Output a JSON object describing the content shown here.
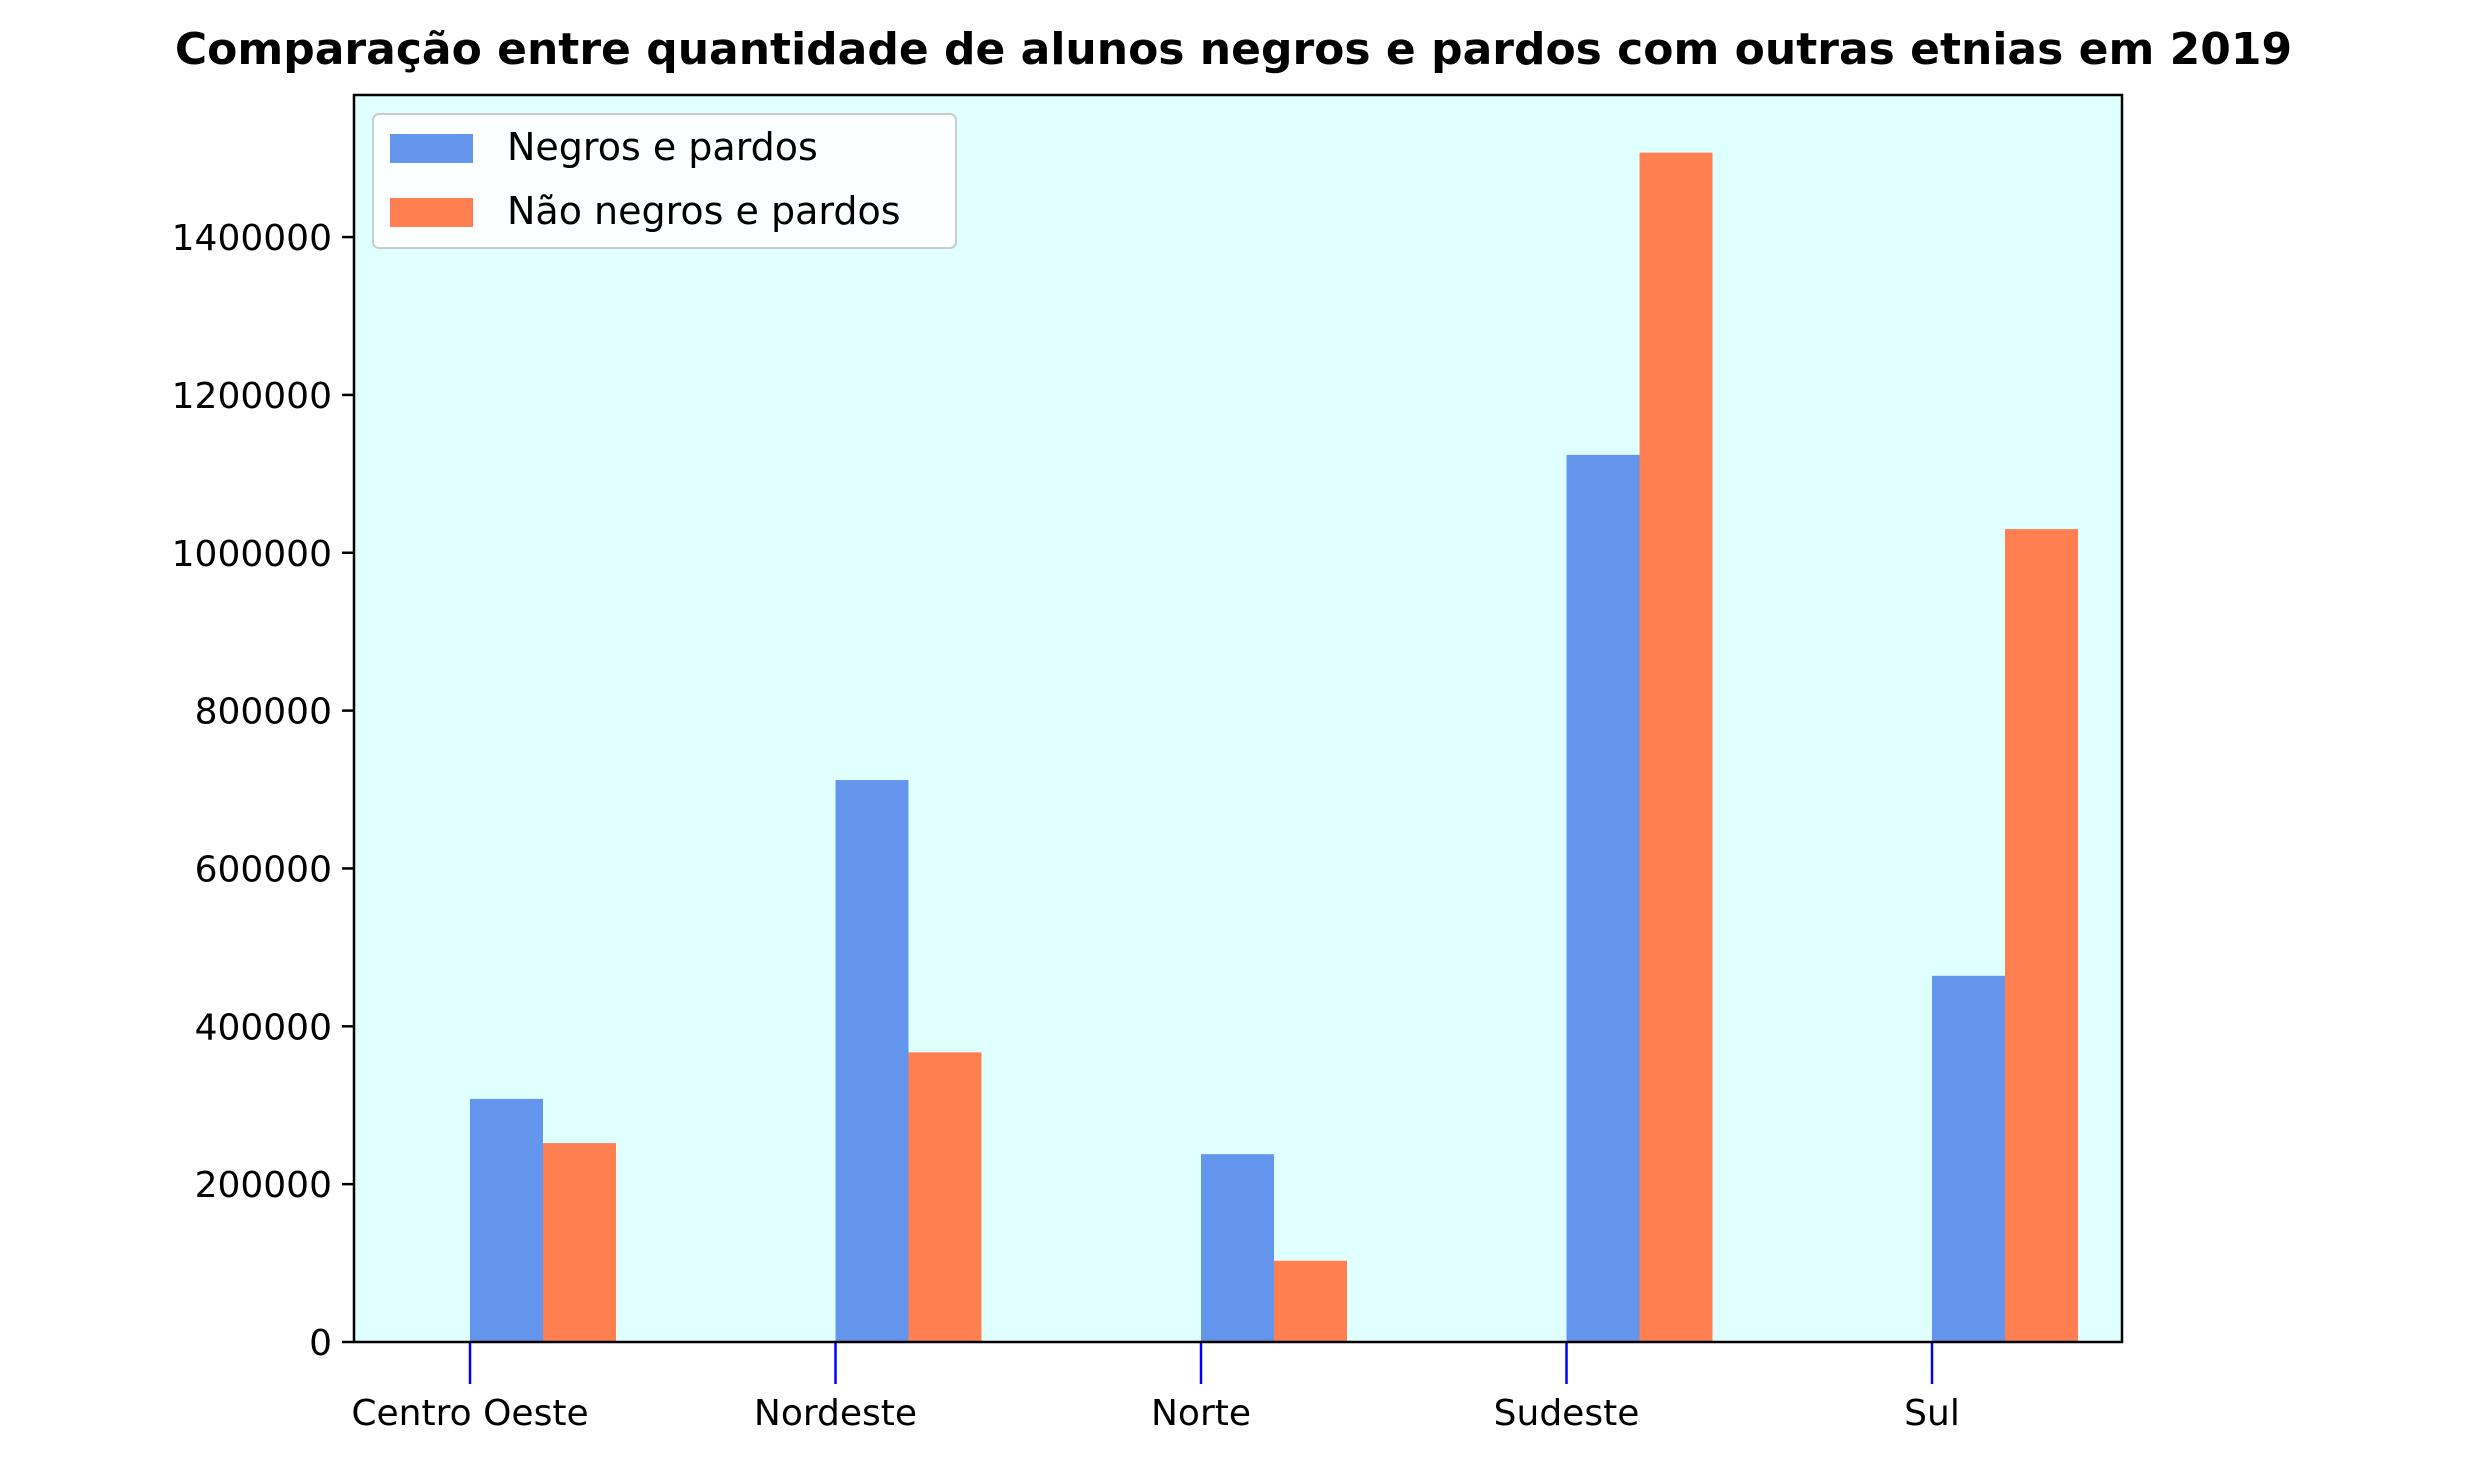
{
  "chart_data": {
    "type": "bar",
    "title": "Comparação entre quantidade de alunos negros e pardos com outras etnias em 2019",
    "xlabel": "",
    "ylabel": "",
    "categories": [
      "Centro Oeste",
      "Nordeste",
      "Norte",
      "Sudeste",
      "Sul"
    ],
    "series": [
      {
        "name": "Negros e pardos",
        "color": "#6495ED",
        "values": [
          308000,
          712000,
          238000,
          1124000,
          464000
        ]
      },
      {
        "name": "Não negros e pardos",
        "color": "#FF7F50",
        "values": [
          252000,
          367000,
          103000,
          1507000,
          1030000
        ]
      }
    ],
    "ylim": [
      0,
      1580000
    ],
    "yticks": [
      0,
      200000,
      400000,
      600000,
      800000,
      1000000,
      1200000,
      1400000
    ],
    "plot_background": "#E0FFFF",
    "xtick_color": "#0000FF",
    "grid": false,
    "legend_position": "top-left"
  }
}
